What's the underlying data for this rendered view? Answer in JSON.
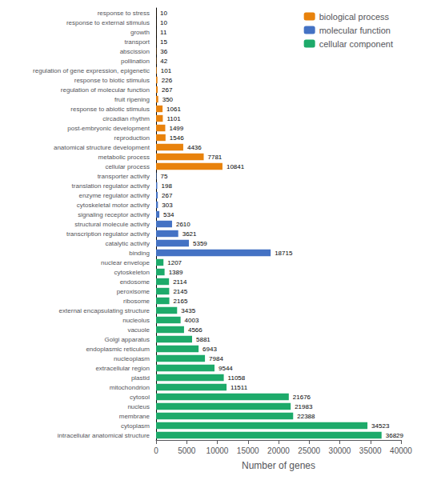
{
  "chart_data": {
    "type": "bar",
    "orientation": "horizontal",
    "categories": [
      "response to stress",
      "response to external stimulus",
      "growth",
      "transport",
      "abscission",
      "pollination",
      "regulation of gene expression, epigenetic",
      "response to biotic stimulus",
      "regulation of molecular function",
      "fruit ripening",
      "response to abiotic stimulus",
      "circadian rhythm",
      "post-embryonic development",
      "reproduction",
      "anatomical structure development",
      "metabolic process",
      "cellular process",
      "transporter activity",
      "translation regulator activity",
      "enzyme regulator activity",
      "cytoskeletal motor activity",
      "signaling receptor activity",
      "structural molecule activity",
      "transcription regulator activity",
      "catalytic activity",
      "binding",
      "nuclear envelope",
      "cytoskeleton",
      "endosome",
      "peroxisome",
      "ribosome",
      "external encapsulating structure",
      "nucleolus",
      "vacuole",
      "Golgi apparatus",
      "endoplasmic reticulum",
      "nucleoplasm",
      "extracellular region",
      "plastid",
      "mitochondrion",
      "cytosol",
      "nucleus",
      "membrane",
      "cytoplasm",
      "intracellular anatomical structure"
    ],
    "series": [
      {
        "name": "biological process",
        "color": "#E8820C",
        "values": [
          10,
          10,
          11,
          15,
          36,
          42,
          101,
          226,
          267,
          350,
          1061,
          1101,
          1499,
          1546,
          4436,
          7781,
          10841,
          null,
          null,
          null,
          null,
          null,
          null,
          null,
          null,
          null,
          null,
          null,
          null,
          null,
          null,
          null,
          null,
          null,
          null,
          null,
          null,
          null,
          null,
          null,
          null,
          null,
          null,
          null,
          null
        ]
      },
      {
        "name": "molecular function",
        "color": "#4472C4",
        "values": [
          null,
          null,
          null,
          null,
          null,
          null,
          null,
          null,
          null,
          null,
          null,
          null,
          null,
          null,
          null,
          null,
          null,
          75,
          198,
          267,
          303,
          534,
          2610,
          3621,
          5359,
          18715,
          null,
          null,
          null,
          null,
          null,
          null,
          null,
          null,
          null,
          null,
          null,
          null,
          null,
          null,
          null,
          null,
          null,
          null,
          null
        ]
      },
      {
        "name": "cellular component",
        "color": "#1DAA6A",
        "values": [
          null,
          null,
          null,
          null,
          null,
          null,
          null,
          null,
          null,
          null,
          null,
          null,
          null,
          null,
          null,
          null,
          null,
          null,
          null,
          null,
          null,
          null,
          null,
          null,
          null,
          null,
          1207,
          1389,
          2114,
          2145,
          2165,
          3435,
          4003,
          4566,
          5881,
          6943,
          7984,
          9544,
          11058,
          11511,
          21676,
          21983,
          22388,
          34523,
          36829
        ]
      }
    ],
    "xlabel": "Number of genes",
    "xlim": [
      0,
      40000
    ],
    "xticks": [
      0,
      5000,
      10000,
      15000,
      20000,
      25000,
      30000,
      35000,
      40000
    ],
    "legend": "upper right",
    "data_labels": true,
    "grid": false
  }
}
